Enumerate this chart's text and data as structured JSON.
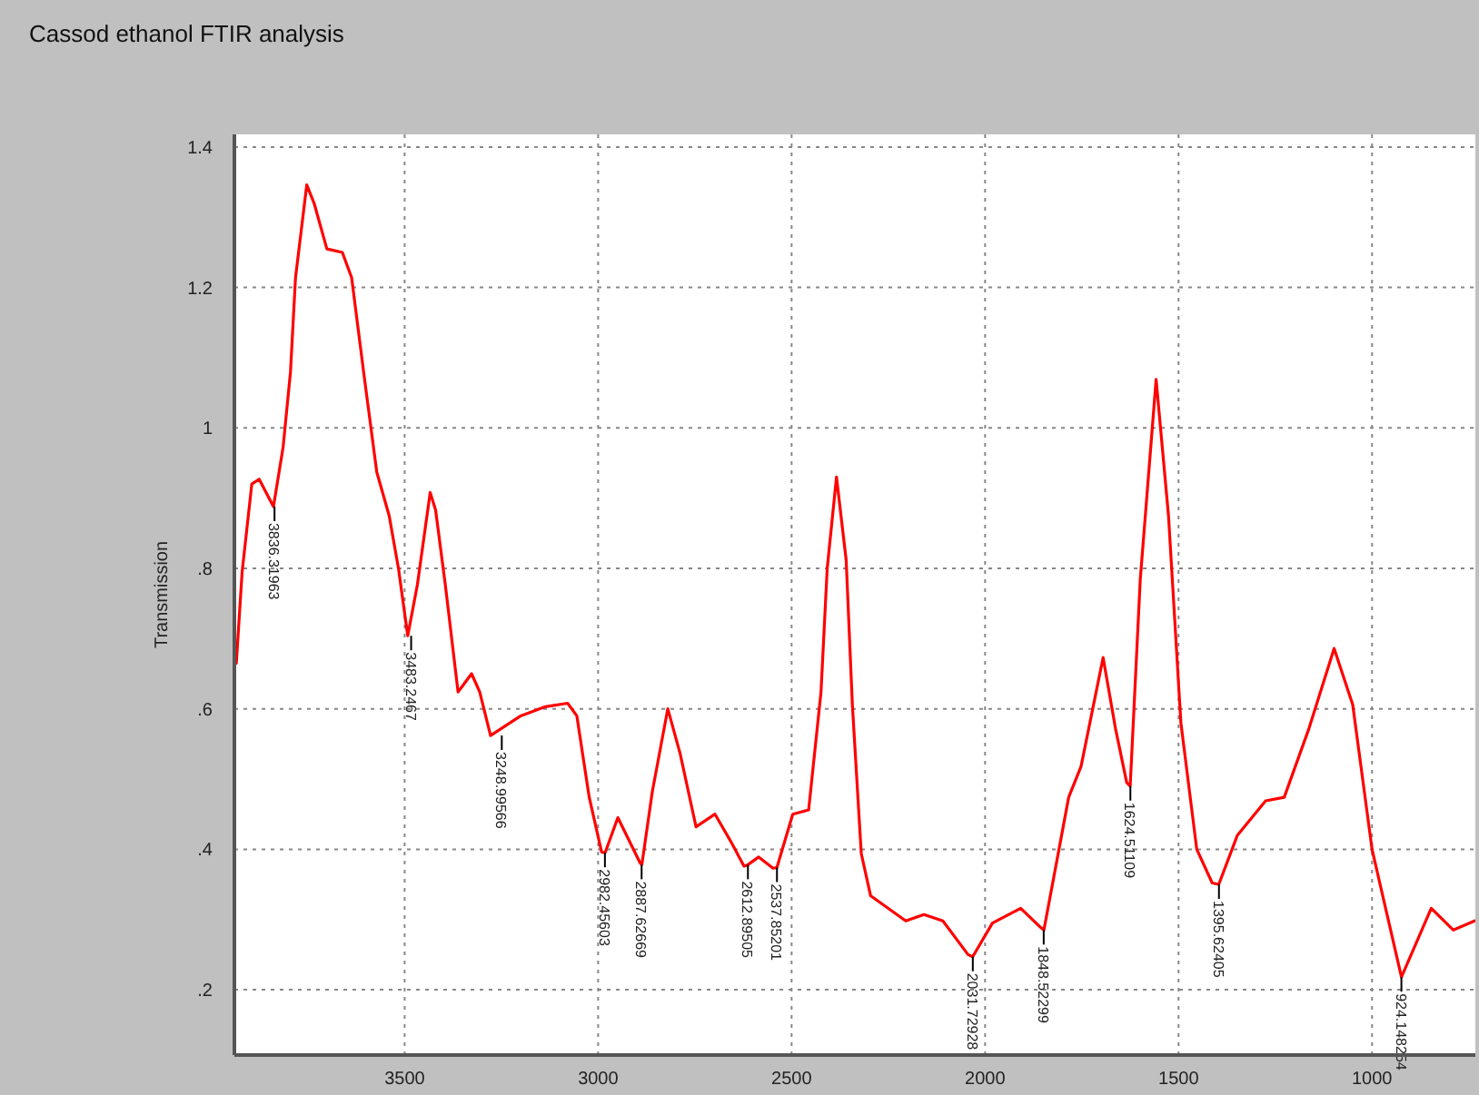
{
  "chart_data": {
    "type": "line",
    "title": "Cassod ethanol FTIR analysis",
    "ylabel": "Transmission",
    "xlim": [
      3940,
      733
    ],
    "xticks": [
      3500,
      3000,
      2500,
      2000,
      1500,
      1000
    ],
    "ylim": [
      0.107,
      1.418
    ],
    "yticks": [
      {
        "value": 0.2,
        "label": ".2"
      },
      {
        "value": 0.4,
        "label": ".4"
      },
      {
        "value": 0.6,
        "label": ".6"
      },
      {
        "value": 0.8,
        "label": ".8"
      },
      1,
      1.2,
      1.4
    ],
    "grid": true,
    "marker": "none",
    "line_style": "solid",
    "series": [
      {
        "color": "#ff0000",
        "x": [
          3935,
          3920,
          3895,
          3876,
          3839,
          3814,
          3795,
          3782,
          3753,
          3734,
          3701,
          3661,
          3637,
          3604,
          3572,
          3540,
          3516,
          3492,
          3467,
          3434,
          3420,
          3395,
          3362,
          3327,
          3306,
          3278,
          3200,
          3136,
          3079,
          3055,
          3023,
          2991,
          2982,
          2949,
          2892,
          2887,
          2860,
          2820,
          2788,
          2747,
          2698,
          2658,
          2623,
          2613,
          2585,
          2548,
          2538,
          2497,
          2456,
          2424,
          2408,
          2384,
          2359,
          2343,
          2320,
          2296,
          2205,
          2158,
          2109,
          2044,
          2032,
          1981,
          1908,
          1859,
          1848,
          1809,
          1784,
          1752,
          1695,
          1663,
          1634,
          1625,
          1599,
          1558,
          1526,
          1494,
          1453,
          1413,
          1396,
          1348,
          1275,
          1227,
          1163,
          1098,
          1050,
          1000,
          924,
          847,
          790,
          735
        ],
        "values": [
          0.665,
          0.795,
          0.92,
          0.927,
          0.888,
          0.973,
          1.08,
          1.214,
          1.346,
          1.32,
          1.255,
          1.25,
          1.214,
          1.071,
          0.937,
          0.875,
          0.8,
          0.704,
          0.777,
          0.908,
          0.883,
          0.777,
          0.624,
          0.65,
          0.624,
          0.562,
          0.59,
          0.603,
          0.608,
          0.59,
          0.474,
          0.396,
          0.395,
          0.445,
          0.381,
          0.378,
          0.482,
          0.6,
          0.536,
          0.432,
          0.45,
          0.412,
          0.376,
          0.378,
          0.389,
          0.373,
          0.374,
          0.45,
          0.456,
          0.624,
          0.8,
          0.93,
          0.812,
          0.606,
          0.394,
          0.334,
          0.298,
          0.307,
          0.298,
          0.25,
          0.247,
          0.295,
          0.316,
          0.29,
          0.285,
          0.4,
          0.474,
          0.518,
          0.673,
          0.572,
          0.495,
          0.49,
          0.784,
          1.069,
          0.875,
          0.58,
          0.4,
          0.352,
          0.35,
          0.42,
          0.469,
          0.474,
          0.572,
          0.686,
          0.606,
          0.4,
          0.218,
          0.316,
          0.285,
          0.298
        ]
      }
    ],
    "annotations": [
      {
        "text": "3836.31963",
        "x": 3836.31963,
        "y": 0.888
      },
      {
        "text": "3483.2467",
        "x": 3483.2467,
        "y": 0.704
      },
      {
        "text": "3248.99566",
        "x": 3248.99566,
        "y": 0.562
      },
      {
        "text": "2982.45603",
        "x": 2982.45603,
        "y": 0.395
      },
      {
        "text": "2887.62669",
        "x": 2887.62669,
        "y": 0.378
      },
      {
        "text": "2612.89505",
        "x": 2612.89505,
        "y": 0.378
      },
      {
        "text": "2537.85201",
        "x": 2537.85201,
        "y": 0.374
      },
      {
        "text": "2031.72928",
        "x": 2031.72928,
        "y": 0.247
      },
      {
        "text": "1848.52299",
        "x": 1848.52299,
        "y": 0.285
      },
      {
        "text": "1624.51109",
        "x": 1624.51109,
        "y": 0.49
      },
      {
        "text": "1395.62405",
        "x": 1395.62405,
        "y": 0.35
      },
      {
        "text": "924.148254",
        "x": 924.148254,
        "y": 0.218
      }
    ]
  }
}
